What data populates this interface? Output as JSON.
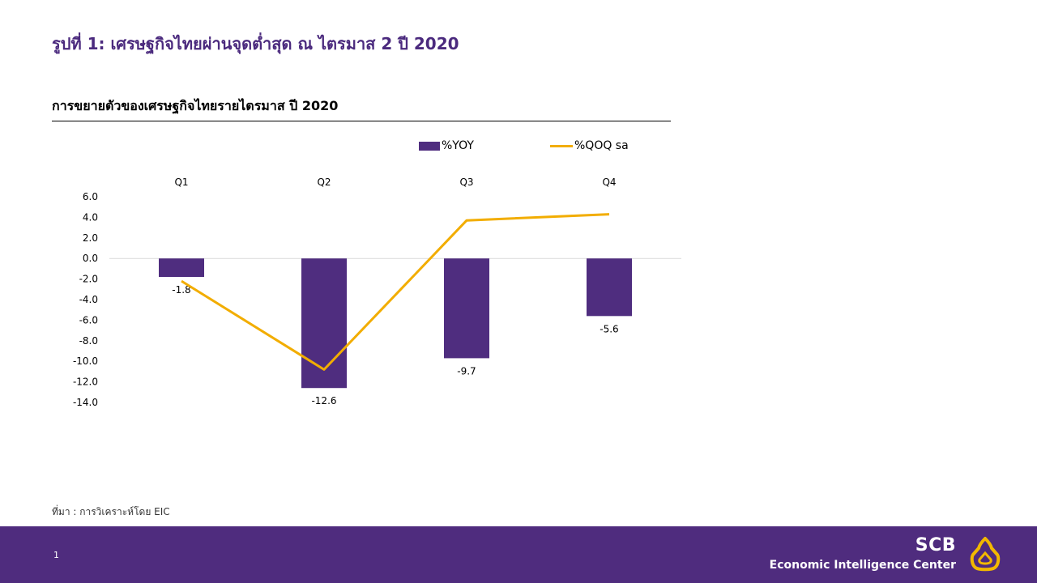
{
  "figure_title": "รูปที่ 1: เศรษฐกิจไทยผ่านจุดต่ำสุด ณ ไตรมาส 2 ปี 2020",
  "chart_heading": "การขยายตัวของเศรษฐกิจไทยรายไตรมาส ปี 2020",
  "source": "ที่มา : การวิเคราะห์โดย EIC",
  "footer": {
    "page_number": "1",
    "brand_name": "SCB",
    "brand_subtitle": "Economic Intelligence Center"
  },
  "colors": {
    "title": "#4b2a7e",
    "bar": "#4f2d7f",
    "line": "#f2ad00",
    "footer": "#4f2c7e"
  },
  "chart_data": {
    "type": "bar",
    "categories": [
      "Q1",
      "Q2",
      "Q3",
      "Q4"
    ],
    "series": [
      {
        "name": "%YOY",
        "type": "bar",
        "values": [
          -1.8,
          -12.6,
          -9.7,
          -5.6
        ],
        "data_labels": [
          "-1.8",
          "-12.6",
          "-9.7",
          "-5.6"
        ]
      },
      {
        "name": "%QOQ sa",
        "type": "line",
        "values": [
          -2.2,
          -10.8,
          3.7,
          4.3
        ]
      }
    ],
    "ylim": [
      -14,
      6
    ],
    "yticks": [
      6,
      4,
      2,
      0,
      -2,
      -4,
      -6,
      -8,
      -10,
      -12,
      -14
    ],
    "ytick_labels": [
      "6.0",
      "4.0",
      "2.0",
      "0.0",
      "-2.0",
      "-4.0",
      "-6.0",
      "-8.0",
      "-10.0",
      "-12.0",
      "-14.0"
    ],
    "category_labels_position": "top",
    "legend_position": "top",
    "grid": false
  }
}
